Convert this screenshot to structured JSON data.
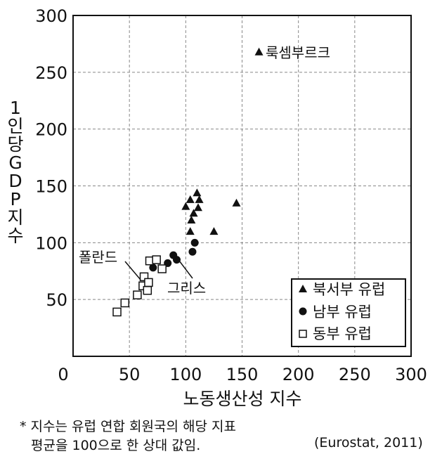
{
  "chart_data": {
    "type": "scatter",
    "xlabel": "노동생산성 지수",
    "ylabel": "1인당GDP지수",
    "xlim": [
      0,
      300
    ],
    "ylim": [
      0,
      300
    ],
    "xticks": [
      "0",
      "50",
      "100",
      "150",
      "200",
      "250",
      "300"
    ],
    "yticks": [
      "50",
      "100",
      "150",
      "200",
      "250",
      "300"
    ],
    "xtick_values": [
      0,
      50,
      100,
      150,
      200,
      250,
      300
    ],
    "ytick_values": [
      50,
      100,
      150,
      200,
      250,
      300
    ],
    "grid": true,
    "legend_position": "bottom-right",
    "series": [
      {
        "name": "북서부 유럽",
        "marker": "triangle",
        "points": [
          [
            165,
            268
          ],
          [
            100,
            132
          ],
          [
            104,
            138
          ],
          [
            110,
            144
          ],
          [
            112,
            138
          ],
          [
            111,
            131
          ],
          [
            107,
            126
          ],
          [
            105,
            120
          ],
          [
            104,
            110
          ],
          [
            125,
            110
          ],
          [
            145,
            135
          ]
        ]
      },
      {
        "name": "남부 유럽",
        "marker": "circle",
        "points": [
          [
            71,
            78
          ],
          [
            84,
            82
          ],
          [
            89,
            89
          ],
          [
            92,
            85
          ],
          [
            108,
            100
          ],
          [
            106,
            92
          ]
        ]
      },
      {
        "name": "동부 유럽",
        "marker": "square-open",
        "points": [
          [
            39,
            39
          ],
          [
            46,
            47
          ],
          [
            57,
            54
          ],
          [
            62,
            62
          ],
          [
            63,
            70
          ],
          [
            66,
            58
          ],
          [
            67,
            65
          ],
          [
            68,
            84
          ],
          [
            74,
            85
          ],
          [
            79,
            77
          ]
        ]
      }
    ],
    "annotations": [
      {
        "text": "룩셈부르크",
        "x": 165,
        "y": 268,
        "point_label": true
      },
      {
        "text": "폴란드",
        "x": 62,
        "y": 62,
        "point_label": false
      },
      {
        "text": "그리스",
        "x": 92,
        "y": 85,
        "point_label": false
      }
    ]
  },
  "footnote": {
    "line1": "* 지수는 유럽 연합 회원국의 해당 지표",
    "line2": "평균을 100으로 한 상대 값임.",
    "source": "(Eurostat, 2011)"
  }
}
